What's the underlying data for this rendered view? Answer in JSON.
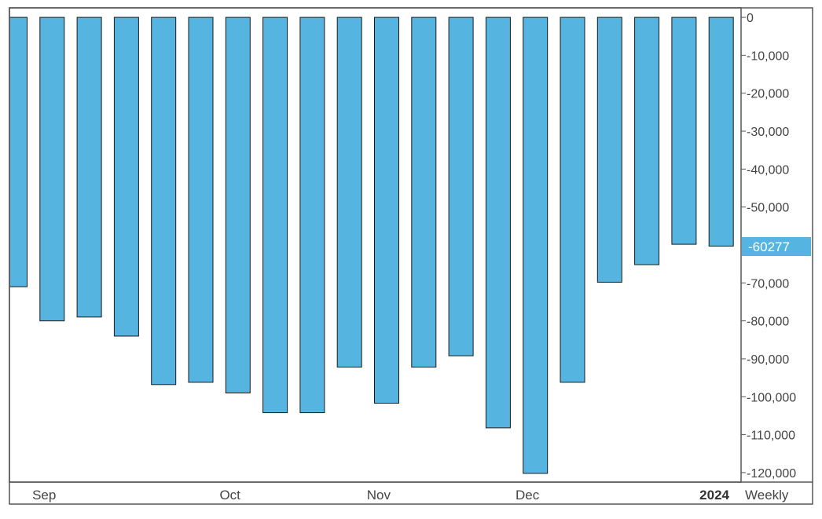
{
  "chart_data": {
    "type": "bar",
    "title": "",
    "xlabel": "",
    "ylabel": "",
    "period": "Weekly",
    "year_label": "2024",
    "last_value_label": "-60277",
    "colors": {
      "bar": "#55b5e0",
      "bar_stroke": "#1a1a1a",
      "badge": "#55b5e0",
      "frame": "#555555"
    },
    "ylim": [
      -122500,
      2500
    ],
    "yticks": [
      {
        "value": 0,
        "label": "0"
      },
      {
        "value": -10000,
        "label": "-10,000"
      },
      {
        "value": -20000,
        "label": "-20,000"
      },
      {
        "value": -30000,
        "label": "-30,000"
      },
      {
        "value": -40000,
        "label": "-40,000"
      },
      {
        "value": -50000,
        "label": "-50,000"
      },
      {
        "value": -70000,
        "label": "-70,000"
      },
      {
        "value": -80000,
        "label": "-80,000"
      },
      {
        "value": -90000,
        "label": "-90,000"
      },
      {
        "value": -100000,
        "label": "-100,000"
      },
      {
        "value": -110000,
        "label": "-110,000"
      },
      {
        "value": -120000,
        "label": "-120,000"
      }
    ],
    "month_ticks": [
      {
        "bar_pos": 0.3,
        "label": "Sep"
      },
      {
        "bar_pos": 5.3,
        "label": "Oct"
      },
      {
        "bar_pos": 9.3,
        "label": "Nov"
      },
      {
        "bar_pos": 13.3,
        "label": "Dec"
      }
    ],
    "values": [
      -71000,
      -80000,
      -79000,
      -84000,
      -96800,
      -96200,
      -99000,
      -104200,
      -104200,
      -92200,
      -101700,
      -92200,
      -89200,
      -108200,
      -120200,
      -96200,
      -69800,
      -65200,
      -59800,
      -60277
    ]
  }
}
